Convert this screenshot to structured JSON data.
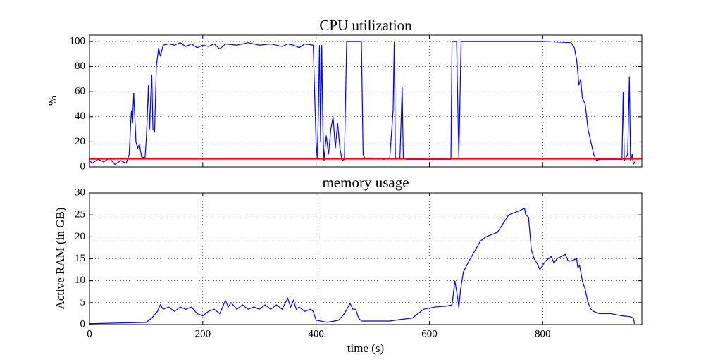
{
  "chart_data": [
    {
      "type": "line",
      "title": "CPU utilization",
      "ylabel": "%",
      "x": [
        0,
        5,
        15,
        25,
        35,
        45,
        55,
        65,
        70,
        72,
        74,
        76,
        78,
        80,
        82,
        85,
        88,
        92,
        98,
        100,
        102,
        104,
        106,
        108,
        110,
        112,
        115,
        118,
        122,
        125,
        130,
        140,
        150,
        160,
        170,
        180,
        190,
        200,
        210,
        220,
        230,
        240,
        260,
        280,
        300,
        320,
        340,
        350,
        360,
        370,
        380,
        395,
        398,
        400,
        402,
        404,
        406,
        408,
        410,
        412,
        414,
        418,
        422,
        426,
        430,
        434,
        438,
        442,
        446,
        450,
        454,
        470,
        480,
        483,
        486,
        500,
        520,
        530,
        536,
        538,
        540,
        548,
        552,
        554,
        560,
        580,
        600,
        638,
        640,
        648,
        652,
        656,
        700,
        750,
        800,
        850,
        856,
        860,
        864,
        867,
        870,
        875,
        880,
        885,
        890,
        895,
        900,
        940,
        942,
        944,
        950,
        953,
        955,
        958,
        960,
        964
      ],
      "series": [
        {
          "color": "#0000ff",
          "values": [
            5,
            3,
            6,
            4,
            7,
            2,
            5,
            3,
            10,
            28,
            45,
            35,
            59,
            40,
            20,
            15,
            18,
            8,
            7,
            20,
            40,
            65,
            30,
            55,
            73,
            30,
            28,
            80,
            95,
            88,
            97,
            98,
            97,
            99,
            96,
            98,
            95,
            97,
            96,
            98,
            94,
            98,
            97,
            99,
            97,
            98,
            96,
            98,
            97,
            95,
            98,
            97,
            50,
            20,
            7,
            40,
            97,
            20,
            97,
            30,
            5,
            25,
            10,
            30,
            40,
            15,
            35,
            15,
            5,
            6,
            100,
            100,
            100,
            10,
            7,
            7,
            6,
            7,
            45,
            100,
            7,
            7,
            64,
            7,
            6,
            6,
            6,
            6,
            100,
            100,
            7,
            100,
            100,
            100,
            100,
            99,
            95,
            85,
            65,
            70,
            55,
            50,
            30,
            20,
            10,
            5,
            6,
            6,
            60,
            5,
            10,
            72,
            5,
            10,
            2,
            5
          ]
        }
      ],
      "hline": {
        "value": 6.5,
        "color": "#ff0000"
      },
      "xlim": [
        0,
        975
      ],
      "xticks": [
        0,
        200,
        400,
        600,
        800
      ],
      "ylim": [
        0,
        105
      ],
      "yticks": [
        0,
        20,
        40,
        60,
        80,
        100
      ],
      "grid": true
    },
    {
      "type": "line",
      "title": "memory usage",
      "ylabel": "Active RAM (in GB)",
      "xlabel": "time (s)",
      "x": [
        0,
        100,
        110,
        120,
        125,
        130,
        140,
        150,
        160,
        170,
        180,
        190,
        200,
        210,
        220,
        230,
        235,
        240,
        245,
        250,
        260,
        270,
        280,
        290,
        300,
        310,
        320,
        330,
        340,
        350,
        355,
        360,
        365,
        370,
        380,
        390,
        395,
        400,
        420,
        440,
        450,
        460,
        465,
        470,
        475,
        480,
        530,
        540,
        570,
        590,
        610,
        630,
        640,
        645,
        650,
        652,
        655,
        660,
        670,
        690,
        700,
        720,
        740,
        760,
        768,
        770,
        775,
        780,
        785,
        790,
        795,
        800,
        805,
        815,
        820,
        825,
        840,
        845,
        850,
        860,
        862,
        865,
        870,
        875,
        880,
        885,
        890,
        900,
        920,
        940,
        955,
        960,
        962
      ],
      "series": [
        {
          "color": "#0000ff",
          "values": [
            0.2,
            0.5,
            1.5,
            3,
            4.5,
            3.5,
            4,
            3,
            4,
            3.5,
            4,
            2.5,
            2,
            3,
            3.5,
            2.5,
            4,
            5.5,
            4,
            5,
            3.5,
            4.5,
            3.5,
            4,
            3.5,
            4.5,
            3.5,
            4.5,
            3.5,
            6,
            4,
            5.5,
            3.5,
            4,
            3,
            3.5,
            3,
            1,
            0.5,
            1,
            2.5,
            4.8,
            3.5,
            3.5,
            1.5,
            0.8,
            0.8,
            1,
            1.5,
            3.5,
            4,
            4.2,
            4.5,
            10,
            6,
            3.8,
            8,
            12,
            14.5,
            19,
            20,
            21,
            25,
            26,
            26.5,
            25,
            24.5,
            17,
            15,
            14,
            12.5,
            13.5,
            14.5,
            15.5,
            14,
            15,
            16,
            14.5,
            14.5,
            15,
            13,
            13.5,
            10,
            8,
            5,
            3.5,
            3,
            2.5,
            2.5,
            2,
            1.8,
            1.5,
            0.2
          ]
        }
      ],
      "xlim": [
        0,
        975
      ],
      "xticks": [
        0,
        200,
        400,
        600,
        800
      ],
      "ylim": [
        0,
        30
      ],
      "yticks": [
        0,
        5,
        10,
        15,
        20,
        25,
        30
      ],
      "grid": true
    }
  ]
}
